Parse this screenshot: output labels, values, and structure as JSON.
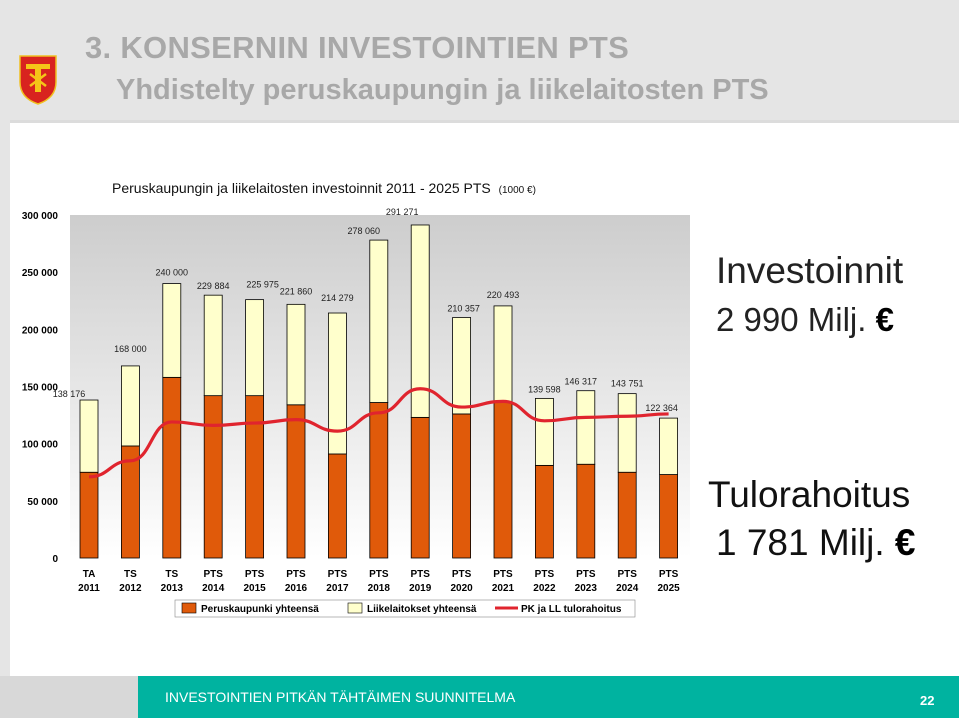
{
  "header": {
    "title_line1": "3. KONSERNIN INVESTOINTIEN PTS",
    "title_line2": "Yhdistelty peruskaupungin ja liikelaitosten PTS"
  },
  "side": {
    "invest_label": "Investoinnit",
    "invest_value": "2 990 Milj.",
    "tulo_label": "Tulorahoitus",
    "tulo_value": "1 781 Milj.",
    "currency_symbol": "€"
  },
  "footer": {
    "text": "INVESTOINTIEN PITKÄN TÄHTÄIMEN SUUNNITELMA",
    "page_number": "22"
  },
  "colors": {
    "peruskaupunki": "#e05a0a",
    "liikelaitokset": "#ffffcc",
    "tulorahoitus_line": "#e0242e",
    "plot_background_top": "#cfcfcf",
    "plot_background_bottom": "#ffffff",
    "footer_accent": "#00b3a0"
  },
  "chart_data": {
    "type": "bar",
    "stacked": true,
    "title": "Peruskaupungin ja liikelaitosten investoinnit 2011 - 2025 PTS",
    "title_unit": "(1000 €)",
    "categories": [
      [
        "TA",
        "2011"
      ],
      [
        "TS",
        "2012"
      ],
      [
        "TS",
        "2013"
      ],
      [
        "PTS",
        "2014"
      ],
      [
        "PTS",
        "2015"
      ],
      [
        "PTS",
        "2016"
      ],
      [
        "PTS",
        "2017"
      ],
      [
        "PTS",
        "2018"
      ],
      [
        "PTS",
        "2019"
      ],
      [
        "PTS",
        "2020"
      ],
      [
        "PTS",
        "2021"
      ],
      [
        "PTS",
        "2022"
      ],
      [
        "PTS",
        "2023"
      ],
      [
        "PTS",
        "2024"
      ],
      [
        "PTS",
        "2025"
      ]
    ],
    "series": [
      {
        "name": "Peruskaupunki yhteensä",
        "kind": "bar",
        "values": [
          75000,
          98000,
          158000,
          142000,
          142000,
          134000,
          91000,
          136000,
          123000,
          126000,
          136000,
          81000,
          82000,
          75000,
          73000
        ]
      },
      {
        "name": "Liikelaitokset yhteensä",
        "kind": "bar",
        "values": [
          63176,
          70000,
          82000,
          87884,
          83975,
          87860,
          123279,
          142060,
          168271,
          84357,
          84493,
          58598,
          64317,
          68751,
          49364
        ]
      },
      {
        "name": "PK ja LL tulorahoitus",
        "kind": "line",
        "values": [
          71000,
          85000,
          119000,
          116000,
          118000,
          121000,
          111000,
          127000,
          148000,
          132000,
          137000,
          120000,
          123000,
          124000,
          126000
        ]
      }
    ],
    "totals": [
      138176,
      168000,
      240000,
      229884,
      225975,
      221860,
      214279,
      278060,
      291271,
      210357,
      220493,
      139598,
      146317,
      143751,
      122364
    ],
    "total_labels": [
      "138 176",
      "168 000",
      "240 000",
      "229 884",
      "225 975",
      "221 860",
      "214 279",
      "278 060",
      "291 271",
      "210 357",
      "220 493",
      "139 598",
      "146 317",
      "143 751",
      "122 364"
    ],
    "y_ticks": [
      0,
      50000,
      100000,
      150000,
      200000,
      250000,
      300000
    ],
    "y_tick_labels": [
      "0",
      "50 000",
      "100 000",
      "150 000",
      "200 000",
      "250 000",
      "300 000"
    ],
    "ylim": [
      0,
      300000
    ],
    "xlabel": "",
    "ylabel": "",
    "grid": false,
    "legend_position": "bottom"
  }
}
